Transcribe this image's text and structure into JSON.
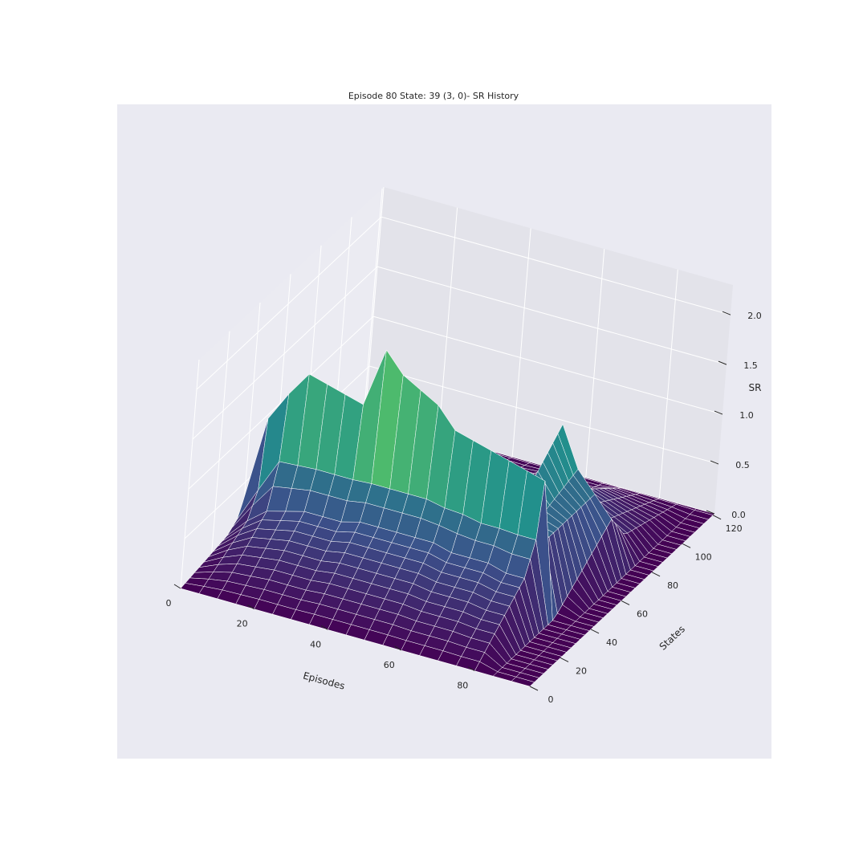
{
  "chart_data": {
    "type": "surface3d",
    "title": "Episode 80 State: 39 (3, 0)- SR History",
    "xlabel": "Episodes",
    "ylabel": "States",
    "zlabel": "SR",
    "x_ticks": [
      "0",
      "20",
      "40",
      "60",
      "80"
    ],
    "y_ticks": [
      "0",
      "20",
      "40",
      "60",
      "80",
      "100",
      "120"
    ],
    "z_ticks": [
      "0.0",
      "0.5",
      "1.0",
      "1.5",
      "2.0"
    ],
    "xlim": [
      0,
      95
    ],
    "ylim": [
      0,
      121
    ],
    "zlim": [
      0,
      2.3
    ],
    "colormap": "viridis",
    "grid": true,
    "episodes_sampled": [
      0,
      5,
      10,
      15,
      20,
      25,
      30,
      35,
      40,
      45,
      50,
      55,
      60,
      65,
      70,
      75,
      80,
      85,
      90,
      95
    ],
    "sr_profiles": [
      {
        "state": 0,
        "values": [
          0.0,
          0.0,
          0.0,
          0.0,
          0.0,
          0.0,
          0.0,
          0.0,
          0.0,
          0.0,
          0.0,
          0.0,
          0.0,
          0.0,
          0.0,
          0.0,
          0.0,
          0.0,
          0.0,
          0.0
        ]
      },
      {
        "state": 30,
        "values": [
          0.1,
          0.3,
          0.45,
          0.5,
          0.55,
          0.55,
          0.55,
          0.6,
          0.6,
          0.6,
          0.6,
          0.6,
          0.55,
          0.55,
          0.55,
          0.5,
          0.5,
          0.0,
          0.0,
          0.0
        ]
      },
      {
        "state": 38,
        "values": [
          0.2,
          0.6,
          1.0,
          1.0,
          1.0,
          1.0,
          1.0,
          1.0,
          1.0,
          1.0,
          1.0,
          0.95,
          0.95,
          0.9,
          0.9,
          0.9,
          0.9,
          0.0,
          0.0,
          0.0
        ]
      },
      {
        "state": 39,
        "values": [
          0.3,
          1.2,
          1.5,
          1.75,
          1.7,
          1.65,
          1.6,
          2.2,
          2.0,
          1.9,
          1.8,
          1.6,
          1.55,
          1.5,
          1.45,
          1.4,
          1.35,
          0.0,
          0.0,
          0.0
        ]
      },
      {
        "state": 40,
        "values": [
          0.1,
          0.7,
          0.9,
          0.95,
          0.9,
          0.85,
          0.85,
          0.85,
          0.8,
          0.8,
          0.8,
          0.75,
          0.75,
          0.7,
          0.7,
          0.7,
          0.7,
          0.0,
          0.0,
          0.0
        ]
      },
      {
        "state": 75,
        "values": [
          0.0,
          0.1,
          0.15,
          0.2,
          0.25,
          0.3,
          0.35,
          0.4,
          0.45,
          0.45,
          0.45,
          0.45,
          0.45,
          0.45,
          1.3,
          0.9,
          0.7,
          0.5,
          0.0,
          0.0
        ]
      },
      {
        "state": 85,
        "values": [
          0.0,
          0.0,
          0.0,
          0.1,
          0.1,
          0.15,
          0.2,
          0.2,
          0.25,
          0.25,
          0.3,
          0.3,
          0.3,
          0.3,
          0.5,
          0.4,
          0.3,
          0.2,
          0.0,
          0.0
        ]
      },
      {
        "state": 121,
        "values": [
          0.0,
          0.0,
          0.0,
          0.0,
          0.0,
          0.0,
          0.0,
          0.0,
          0.0,
          0.0,
          0.0,
          0.0,
          0.0,
          0.0,
          0.0,
          0.0,
          0.0,
          0.0,
          0.0,
          0.0
        ]
      }
    ]
  }
}
